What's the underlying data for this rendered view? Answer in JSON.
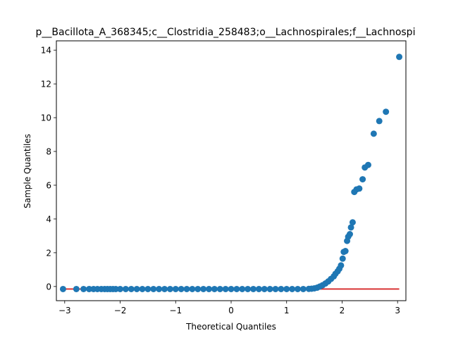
{
  "chart_data": {
    "type": "scatter",
    "title": "p__Bacillota_A_368345;c__Clostridia_258483;o__Lachnospirales;f__Lachnospi",
    "xlabel": "Theoretical Quantiles",
    "ylabel": "Sample Quantiles",
    "xlim": [
      -3.15,
      3.15
    ],
    "ylim": [
      -0.84,
      14.55
    ],
    "xticks": [
      -3,
      -2,
      -1,
      0,
      1,
      2,
      3
    ],
    "xtick_labels": [
      "−3",
      "−2",
      "−1",
      "0",
      "1",
      "2",
      "3"
    ],
    "yticks": [
      0,
      2,
      4,
      6,
      8,
      10,
      12,
      14
    ],
    "ytick_labels": [
      "0",
      "2",
      "4",
      "6",
      "8",
      "10",
      "12",
      "14"
    ],
    "grid": false,
    "marker_color": "#1f77b4",
    "reference_line": {
      "color": "#d62728",
      "x": [
        -3.03,
        3.03
      ],
      "y": [
        -0.15,
        -0.15
      ]
    },
    "series": [
      {
        "points": [
          [
            -3.03,
            -0.15
          ],
          [
            -2.79,
            -0.15
          ],
          [
            -2.66,
            -0.15
          ],
          [
            -2.56,
            -0.15
          ],
          [
            -2.48,
            -0.15
          ],
          [
            -2.41,
            -0.15
          ],
          [
            -2.34,
            -0.15
          ],
          [
            -2.28,
            -0.15
          ],
          [
            -2.23,
            -0.15
          ],
          [
            -2.18,
            -0.15
          ],
          [
            -2.13,
            -0.15
          ],
          [
            -2.08,
            -0.15
          ],
          [
            -2.0,
            -0.15
          ],
          [
            -1.9,
            -0.15
          ],
          [
            -1.8,
            -0.15
          ],
          [
            -1.7,
            -0.15
          ],
          [
            -1.6,
            -0.15
          ],
          [
            -1.5,
            -0.15
          ],
          [
            -1.4,
            -0.15
          ],
          [
            -1.3,
            -0.15
          ],
          [
            -1.2,
            -0.15
          ],
          [
            -1.1,
            -0.15
          ],
          [
            -1.0,
            -0.15
          ],
          [
            -0.9,
            -0.15
          ],
          [
            -0.8,
            -0.15
          ],
          [
            -0.7,
            -0.15
          ],
          [
            -0.6,
            -0.15
          ],
          [
            -0.5,
            -0.15
          ],
          [
            -0.4,
            -0.15
          ],
          [
            -0.3,
            -0.15
          ],
          [
            -0.2,
            -0.15
          ],
          [
            -0.1,
            -0.15
          ],
          [
            0.0,
            -0.15
          ],
          [
            0.1,
            -0.15
          ],
          [
            0.2,
            -0.15
          ],
          [
            0.3,
            -0.15
          ],
          [
            0.4,
            -0.15
          ],
          [
            0.5,
            -0.15
          ],
          [
            0.6,
            -0.15
          ],
          [
            0.7,
            -0.15
          ],
          [
            0.8,
            -0.15
          ],
          [
            0.9,
            -0.15
          ],
          [
            1.0,
            -0.15
          ],
          [
            1.1,
            -0.15
          ],
          [
            1.2,
            -0.15
          ],
          [
            1.3,
            -0.15
          ],
          [
            1.4,
            -0.14
          ],
          [
            1.45,
            -0.13
          ],
          [
            1.5,
            -0.11
          ],
          [
            1.55,
            -0.07
          ],
          [
            1.6,
            0.0
          ],
          [
            1.65,
            0.08
          ],
          [
            1.7,
            0.18
          ],
          [
            1.75,
            0.3
          ],
          [
            1.8,
            0.45
          ],
          [
            1.85,
            0.6
          ],
          [
            1.88,
            0.75
          ],
          [
            1.92,
            0.9
          ],
          [
            1.95,
            1.05
          ],
          [
            1.98,
            1.25
          ],
          [
            2.01,
            1.65
          ],
          [
            2.03,
            2.05
          ],
          [
            2.06,
            2.1
          ],
          [
            2.09,
            2.7
          ],
          [
            2.11,
            2.95
          ],
          [
            2.14,
            3.1
          ],
          [
            2.16,
            3.5
          ],
          [
            2.19,
            3.8
          ],
          [
            2.22,
            5.6
          ],
          [
            2.26,
            5.75
          ],
          [
            2.31,
            5.8
          ],
          [
            2.37,
            6.35
          ],
          [
            2.41,
            7.05
          ],
          [
            2.47,
            7.2
          ],
          [
            2.57,
            9.05
          ],
          [
            2.67,
            9.8
          ],
          [
            2.79,
            10.35
          ],
          [
            3.03,
            13.6
          ]
        ]
      }
    ]
  }
}
